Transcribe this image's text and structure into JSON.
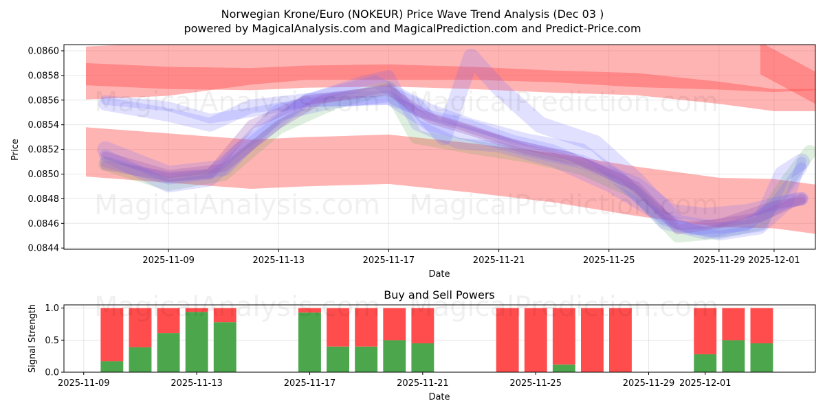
{
  "title_line1": "Norwegian Krone/Euro (NOKEUR) Price Wave Trend Analysis (Dec 03 )",
  "title_line2": "powered by MagicalAnalysis.com and MagicalPrediction.com and Predict-Price.com",
  "watermarks": [
    "MagicalAnalysis.com",
    "MagicalPrediction.com"
  ],
  "colors": {
    "red": "#ff4d4d",
    "green": "#4ca64c",
    "blue": "#6a6aff",
    "purple": "#9b59b6"
  },
  "chart_data": [
    {
      "type": "line",
      "name": "price-wave-chart",
      "xlabel": "Date",
      "ylabel": "Price",
      "x_range_days": [
        -3.8,
        23.5
      ],
      "ylim": [
        0.08439,
        0.08605
      ],
      "x_ticks": [
        {
          "day": 0,
          "label": "2025-11-09"
        },
        {
          "day": 4,
          "label": "2025-11-13"
        },
        {
          "day": 8,
          "label": "2025-11-17"
        },
        {
          "day": 12,
          "label": "2025-11-21"
        },
        {
          "day": 16,
          "label": "2025-11-25"
        },
        {
          "day": 20,
          "label": "2025-11-29"
        },
        {
          "day": 22,
          "label": "2025-12-01"
        }
      ],
      "y_ticks": [
        0.0844,
        0.0846,
        0.0848,
        0.085,
        0.0852,
        0.0854,
        0.0856,
        0.0858,
        0.086
      ],
      "grid": true,
      "red_bands": [
        {
          "x": [
            -3,
            0,
            3,
            5,
            8,
            11,
            14,
            17,
            20,
            22,
            24
          ],
          "y": [
            0.08582,
            0.08585,
            0.08594,
            0.08598,
            0.08598,
            0.08598,
            0.08596,
            0.08592,
            0.0859,
            0.08588,
            0.0859
          ],
          "width": 0.00043
        },
        {
          "x": [
            -3,
            0,
            3,
            5,
            8,
            11,
            14,
            17,
            20,
            22,
            24
          ],
          "y": [
            0.08581,
            0.08578,
            0.08577,
            0.08579,
            0.0858,
            0.08578,
            0.08575,
            0.08573,
            0.08566,
            0.0856,
            0.0856
          ],
          "width": 0.00018
        },
        {
          "x": [
            21.5,
            23.5,
            24
          ],
          "y": [
            0.08594,
            0.0857,
            0.0856
          ],
          "width": 0.00026
        },
        {
          "x": [
            -3,
            0,
            3,
            5,
            8,
            11,
            14,
            17,
            20,
            22,
            24
          ],
          "y": [
            0.08518,
            0.08513,
            0.08508,
            0.0851,
            0.08512,
            0.08505,
            0.08497,
            0.08486,
            0.08477,
            0.08476,
            0.0847
          ],
          "width": 0.0004
        }
      ],
      "blue_waves": [
        {
          "x": [
            -2.3,
            0,
            1.5,
            3,
            5,
            8,
            9.5,
            11,
            13,
            15,
            17,
            18.3,
            19.5,
            21,
            22.5,
            23
          ],
          "y": [
            0.08557,
            0.08548,
            0.0854,
            0.08555,
            0.0856,
            0.08562,
            0.0854,
            0.08532,
            0.0852,
            0.0851,
            0.08492,
            0.0847,
            0.08467,
            0.0847,
            0.08478,
            0.0848
          ]
        },
        {
          "x": [
            -2.3,
            -1,
            0,
            1.5,
            2.5,
            4,
            5,
            7,
            8,
            9,
            10.5,
            12,
            14,
            16,
            17.5,
            19,
            21,
            22,
            23
          ],
          "y": [
            0.0851,
            0.08502,
            0.08496,
            0.085,
            0.0852,
            0.08545,
            0.0856,
            0.08575,
            0.0858,
            0.0854,
            0.08525,
            0.08522,
            0.0851,
            0.0849,
            0.0847,
            0.08455,
            0.08458,
            0.08475,
            0.08505
          ]
        },
        {
          "x": [
            -2.3,
            0,
            2,
            4,
            6,
            8,
            9,
            10,
            11,
            12,
            13.5,
            15.5,
            17,
            18.5,
            20,
            21.5,
            22.3,
            23
          ],
          "y": [
            0.0852,
            0.085,
            0.08505,
            0.0855,
            0.0856,
            0.08565,
            0.08555,
            0.0853,
            0.08595,
            0.0857,
            0.0854,
            0.08525,
            0.08495,
            0.0846,
            0.08455,
            0.0846,
            0.085,
            0.0851
          ]
        },
        {
          "x": [
            -2.3,
            0,
            1.5,
            3,
            5,
            8,
            9.5,
            11,
            12.5,
            14,
            16,
            18,
            20,
            21.5,
            22.5,
            23
          ],
          "y": [
            0.0856,
            0.08555,
            0.08545,
            0.0855,
            0.08558,
            0.0856,
            0.08548,
            0.0854,
            0.08528,
            0.0852,
            0.085,
            0.08462,
            0.0845,
            0.08455,
            0.08475,
            0.0851
          ]
        },
        {
          "x": [
            -2.3,
            0,
            1.5,
            3,
            5,
            7.5,
            9.5,
            11,
            13,
            15,
            16.5,
            18,
            19.5,
            21,
            22.5,
            23
          ],
          "y": [
            0.08515,
            0.0849,
            0.08495,
            0.08525,
            0.0856,
            0.08575,
            0.08552,
            0.0854,
            0.08528,
            0.0852,
            0.08495,
            0.0846,
            0.08452,
            0.0846,
            0.08478,
            0.0848
          ]
        }
      ],
      "purple_waves": [
        {
          "x": [
            -2.3,
            0,
            1.5,
            3,
            5,
            8,
            9.5,
            11,
            13,
            15,
            17,
            18.5,
            20,
            21.5,
            22.5,
            23
          ],
          "y": [
            0.08507,
            0.08498,
            0.085,
            0.0854,
            0.0856,
            0.08568,
            0.08545,
            0.08535,
            0.0852,
            0.0851,
            0.0849,
            0.08455,
            0.0846,
            0.08465,
            0.08475,
            0.0848
          ]
        },
        {
          "x": [
            -2.3,
            0,
            2,
            4,
            5.5,
            8,
            9,
            10.5,
            12.5,
            14.5,
            16.5,
            18.5,
            20,
            22,
            23
          ],
          "y": [
            0.08515,
            0.085,
            0.08505,
            0.0854,
            0.0856,
            0.0857,
            0.0855,
            0.0854,
            0.08525,
            0.08515,
            0.08497,
            0.08458,
            0.0846,
            0.08475,
            0.08478
          ]
        }
      ],
      "green_waves": [
        {
          "x": [
            -2.3,
            0,
            2,
            4,
            6,
            8,
            9,
            11,
            13,
            15,
            17,
            18.5,
            20,
            21.5,
            22.5,
            23.3
          ],
          "y": [
            0.08508,
            0.08492,
            0.085,
            0.08538,
            0.08558,
            0.0857,
            0.0853,
            0.08522,
            0.08515,
            0.08505,
            0.08485,
            0.0845,
            0.08453,
            0.0846,
            0.08495,
            0.08518
          ]
        }
      ]
    },
    {
      "type": "bar",
      "name": "buy-sell-powers-chart",
      "title": "Buy and Sell Powers",
      "xlabel": "Date",
      "ylabel": "Signal Strength",
      "x_range_days": [
        -0.7,
        25.9
      ],
      "ylim": [
        0,
        1.05
      ],
      "y_ticks": [
        0.0,
        0.5,
        1.0
      ],
      "x_ticks": [
        {
          "day": 0,
          "label": "2025-11-09"
        },
        {
          "day": 4,
          "label": "2025-11-13"
        },
        {
          "day": 8,
          "label": "2025-11-17"
        },
        {
          "day": 12,
          "label": "2025-11-21"
        },
        {
          "day": 16,
          "label": "2025-11-25"
        },
        {
          "day": 20,
          "label": "2025-11-29"
        },
        {
          "day": 22,
          "label": "2025-12-01"
        }
      ],
      "series": [
        {
          "name": "Buy",
          "color": "#4ca64c"
        },
        {
          "name": "Sell",
          "color": "#ff4d4d"
        }
      ],
      "bars": [
        {
          "day": 1,
          "buy": 0.17
        },
        {
          "day": 2,
          "buy": 0.39
        },
        {
          "day": 3,
          "buy": 0.61
        },
        {
          "day": 4,
          "buy": 0.94
        },
        {
          "day": 5,
          "buy": 0.78
        },
        {
          "day": 8,
          "buy": 0.93
        },
        {
          "day": 9,
          "buy": 0.4
        },
        {
          "day": 10,
          "buy": 0.4
        },
        {
          "day": 11,
          "buy": 0.5
        },
        {
          "day": 12,
          "buy": 0.45
        },
        {
          "day": 15,
          "buy": 0.0
        },
        {
          "day": 16,
          "buy": 0.0
        },
        {
          "day": 17,
          "buy": 0.12
        },
        {
          "day": 18,
          "buy": 0.0
        },
        {
          "day": 19,
          "buy": 0.0
        },
        {
          "day": 22,
          "buy": 0.28
        },
        {
          "day": 23,
          "buy": 0.5
        },
        {
          "day": 24,
          "buy": 0.45
        }
      ]
    }
  ]
}
